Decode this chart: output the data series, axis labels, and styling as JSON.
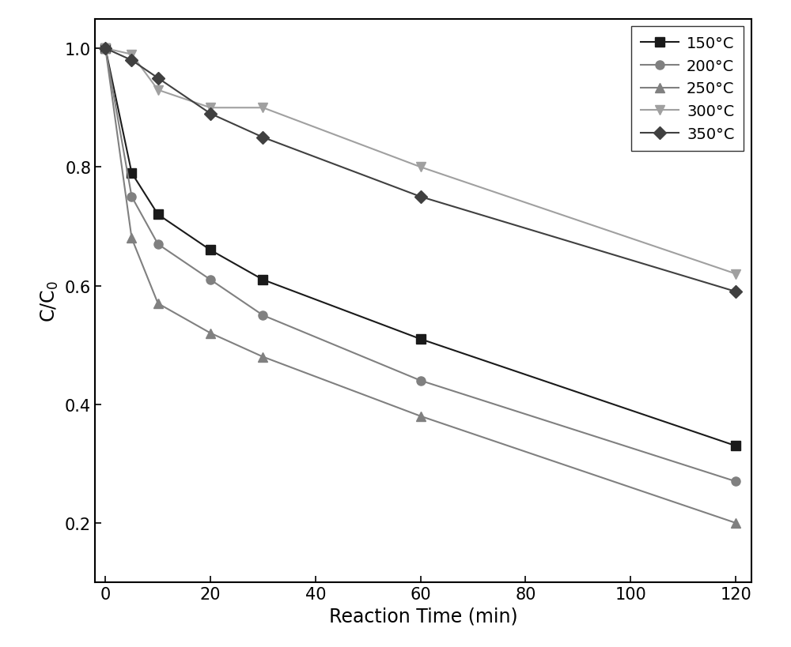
{
  "series": [
    {
      "label": "150°C",
      "color": "#1a1a1a",
      "marker": "s",
      "marker_size": 8,
      "linewidth": 1.5,
      "linestyle": "-",
      "x": [
        0,
        5,
        10,
        20,
        30,
        60,
        120
      ],
      "y": [
        1.0,
        0.79,
        0.72,
        0.66,
        0.61,
        0.51,
        0.33
      ]
    },
    {
      "label": "200°C",
      "color": "#808080",
      "marker": "o",
      "marker_size": 8,
      "linewidth": 1.5,
      "linestyle": "-",
      "x": [
        0,
        5,
        10,
        20,
        30,
        60,
        120
      ],
      "y": [
        1.0,
        0.75,
        0.67,
        0.61,
        0.55,
        0.44,
        0.27
      ]
    },
    {
      "label": "250°C",
      "color": "#808080",
      "marker": "^",
      "marker_size": 8,
      "linewidth": 1.5,
      "linestyle": "-",
      "x": [
        0,
        5,
        10,
        20,
        30,
        60,
        120
      ],
      "y": [
        1.0,
        0.68,
        0.57,
        0.52,
        0.48,
        0.38,
        0.2
      ]
    },
    {
      "label": "300°C",
      "color": "#a0a0a0",
      "marker": "v",
      "marker_size": 8,
      "linewidth": 1.5,
      "linestyle": "-",
      "x": [
        0,
        5,
        10,
        20,
        30,
        60,
        120
      ],
      "y": [
        1.0,
        0.99,
        0.93,
        0.9,
        0.9,
        0.8,
        0.62
      ]
    },
    {
      "label": "350°C",
      "color": "#404040",
      "marker": "D",
      "marker_size": 8,
      "linewidth": 1.5,
      "linestyle": "-",
      "x": [
        0,
        5,
        10,
        20,
        30,
        60,
        120
      ],
      "y": [
        1.0,
        0.98,
        0.95,
        0.89,
        0.85,
        0.75,
        0.59
      ]
    }
  ],
  "xlabel": "Reaction Time (min)",
  "ylabel": "C/C$_0$",
  "xlim": [
    -2,
    123
  ],
  "ylim": [
    0.1,
    1.05
  ],
  "xticks": [
    0,
    20,
    40,
    60,
    80,
    100,
    120
  ],
  "yticks": [
    0.2,
    0.4,
    0.6,
    0.8,
    1.0
  ],
  "xlabel_fontsize": 17,
  "ylabel_fontsize": 17,
  "tick_fontsize": 15,
  "legend_fontsize": 14,
  "legend_loc": "upper right",
  "figure_facecolor": "#ffffff",
  "axes_facecolor": "#ffffff"
}
